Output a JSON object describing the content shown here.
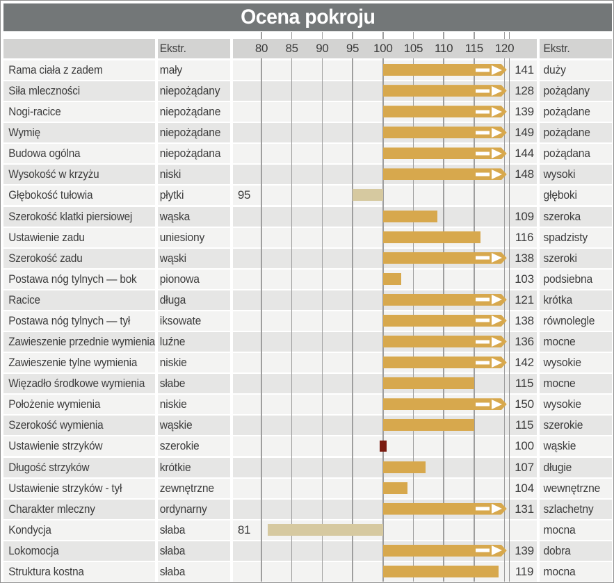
{
  "title": "Ocena pokroju",
  "header": {
    "ekstr_left": "Ekstr.",
    "ekstr_right": "Ekstr."
  },
  "colors": {
    "title_bar": "#737778",
    "title_text": "#ffffff",
    "header_band": "#d3d3d2",
    "row_light": "#f3f3f2",
    "row_dark": "#e6e6e5",
    "grid_line": "#9e9e9e",
    "bar_gold": "#d7a84d",
    "bar_tan": "#d6c9a0",
    "mark_red": "#7a1b10",
    "text": "#3c3c3c"
  },
  "chart_data": {
    "type": "bar",
    "orientation": "horizontal",
    "title": "Ocena pokroju",
    "axis": {
      "min": 80,
      "max": 120,
      "baseline": 100,
      "ticks": [
        80,
        85,
        90,
        95,
        100,
        105,
        110,
        115,
        120
      ]
    },
    "note_overflow": "values above 120 drawn as full bar with arrow tip",
    "rows": [
      {
        "trait": "Rama ciała z zadem",
        "low": "mały",
        "high": "duży",
        "value": 141
      },
      {
        "trait": "Siła mleczności",
        "low": "niepożądany",
        "high": "pożądany",
        "value": 128
      },
      {
        "trait": "Nogi-racice",
        "low": "niepożądane",
        "high": "pożądane",
        "value": 139
      },
      {
        "trait": "Wymię",
        "low": "niepożądane",
        "high": "pożądane",
        "value": 149
      },
      {
        "trait": "Budowa ogólna",
        "low": "niepożądana",
        "high": "pożądana",
        "value": 144
      },
      {
        "trait": "Wysokość w krzyżu",
        "low": "niski",
        "high": "wysoki",
        "value": 148
      },
      {
        "trait": "Głębokość tułowia",
        "low": "płytki",
        "high": "głęboki",
        "value": 95
      },
      {
        "trait": "Szerokość klatki piersiowej",
        "low": "wąska",
        "high": "szeroka",
        "value": 109
      },
      {
        "trait": "Ustawienie zadu",
        "low": "uniesiony",
        "high": "spadzisty",
        "value": 116
      },
      {
        "trait": "Szerokość zadu",
        "low": "wąski",
        "high": "szeroki",
        "value": 138
      },
      {
        "trait": "Postawa nóg tylnych — bok",
        "low": "pionowa",
        "high": "podsiebna",
        "value": 103
      },
      {
        "trait": "Racice",
        "low": "długa",
        "high": "krótka",
        "value": 121
      },
      {
        "trait": "Postawa nóg tylnych — tył",
        "low": "iksowate",
        "high": "równolegle",
        "value": 138
      },
      {
        "trait": "Zawieszenie przednie wymienia",
        "low": "luźne",
        "high": "mocne",
        "value": 136
      },
      {
        "trait": "Zawieszenie tylne wymienia",
        "low": "niskie",
        "high": "wysokie",
        "value": 142
      },
      {
        "trait": "Więzadło środkowe wymienia",
        "low": "słabe",
        "high": "mocne",
        "value": 115
      },
      {
        "trait": "Położenie wymienia",
        "low": "niskie",
        "high": "wysokie",
        "value": 150
      },
      {
        "trait": "Szerokość wymienia",
        "low": "wąskie",
        "high": "szerokie",
        "value": 115
      },
      {
        "trait": "Ustawienie strzyków",
        "low": "szerokie",
        "high": "wąskie",
        "value": 100
      },
      {
        "trait": "Długość strzyków",
        "low": "krótkie",
        "high": "długie",
        "value": 107
      },
      {
        "trait": "Ustawienie strzyków - tył",
        "low": "zewnętrzne",
        "high": "wewnętrzne",
        "value": 104
      },
      {
        "trait": "Charakter mleczny",
        "low": "ordynarny",
        "high": "szlachetny",
        "value": 131
      },
      {
        "trait": "Kondycja",
        "low": "słaba",
        "high": "mocna",
        "value": 81
      },
      {
        "trait": "Lokomocja",
        "low": "słaba",
        "high": "dobra",
        "value": 139
      },
      {
        "trait": "Struktura kostna",
        "low": "słaba",
        "high": "mocna",
        "value": 119
      }
    ]
  }
}
